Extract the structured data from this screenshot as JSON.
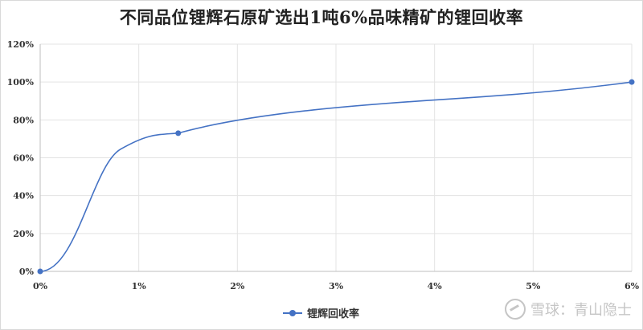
{
  "chart_data": {
    "type": "line",
    "title": "不同品位锂辉石原矿选出1吨6%品味精矿的锂回收率",
    "xlabel": "",
    "ylabel": "",
    "xlim": [
      0,
      6
    ],
    "ylim": [
      0,
      120
    ],
    "x_ticks": [
      {
        "value": 0,
        "label": "0%"
      },
      {
        "value": 1,
        "label": "1%"
      },
      {
        "value": 2,
        "label": "2%"
      },
      {
        "value": 3,
        "label": "3%"
      },
      {
        "value": 4,
        "label": "4%"
      },
      {
        "value": 5,
        "label": "5%"
      },
      {
        "value": 6,
        "label": "6%"
      }
    ],
    "y_ticks": [
      {
        "value": 0,
        "label": "0%"
      },
      {
        "value": 20,
        "label": "20%"
      },
      {
        "value": 40,
        "label": "40%"
      },
      {
        "value": 60,
        "label": "60%"
      },
      {
        "value": 80,
        "label": "80%"
      },
      {
        "value": 100,
        "label": "100%"
      },
      {
        "value": 120,
        "label": "120%"
      }
    ],
    "grid": true,
    "legend_position": "bottom",
    "series": [
      {
        "name": "锂辉回收率",
        "color": "#4472c4",
        "smooth": true,
        "points": [
          {
            "x": 0,
            "y": 0
          },
          {
            "x": 1.4,
            "y": 73
          },
          {
            "x": 6,
            "y": 100
          }
        ]
      }
    ]
  },
  "watermark": {
    "text": "雪球：青山隐士",
    "icon": "snowball-logo-icon"
  }
}
